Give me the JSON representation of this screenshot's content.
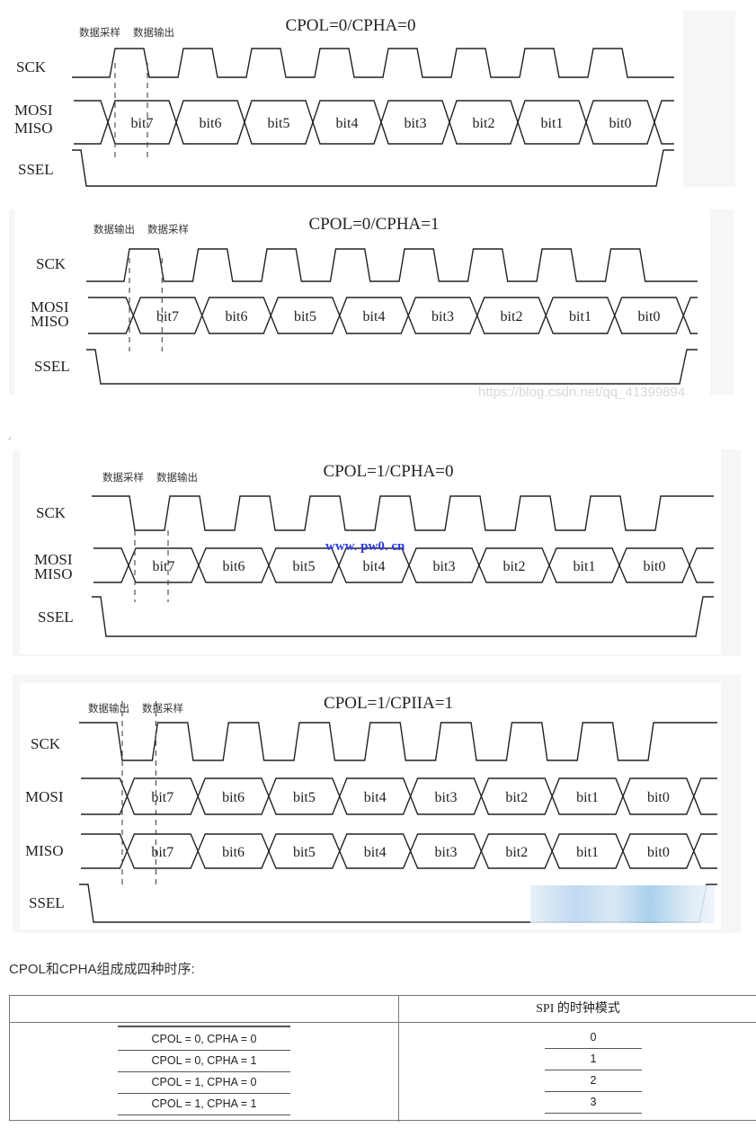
{
  "diagrams": [
    {
      "title": "CPOL=0/CPHA=0",
      "cpol": 0,
      "first_label": "数据采样",
      "second_label": "数据输出",
      "signals": [
        {
          "name": "SCK"
        },
        {
          "name": "MOSI\nMISO",
          "bits": [
            "bit7",
            "bit6",
            "bit5",
            "bit4",
            "bit3",
            "bit2",
            "bit1",
            "bit0"
          ]
        },
        {
          "name": "SSEL"
        }
      ]
    },
    {
      "title": "CPOL=0/CPHA=1",
      "cpol": 0,
      "first_label": "数据输出",
      "second_label": "数据采样",
      "signals": [
        {
          "name": "SCK"
        },
        {
          "name": "MOSI\nMISO",
          "bits": [
            "bit7",
            "bit6",
            "bit5",
            "bit4",
            "bit3",
            "bit2",
            "bit1",
            "bit0"
          ]
        },
        {
          "name": "SSEL"
        }
      ]
    },
    {
      "title": "CPOL=1/CPHA=0",
      "cpol": 1,
      "first_label": "数据采样",
      "second_label": "数据输出",
      "signals": [
        {
          "name": "SCK"
        },
        {
          "name": "MOSI\nMISO",
          "bits": [
            "bit7",
            "bit6",
            "bit5",
            "bit4",
            "bit3",
            "bit2",
            "bit1",
            "bit0"
          ]
        },
        {
          "name": "SSEL"
        }
      ]
    },
    {
      "title": "CPOL=1/CPIIA=1",
      "cpol": 1,
      "first_label": "数据输出",
      "second_label": "数据采样",
      "signals": [
        {
          "name": "SCK"
        },
        {
          "name": "MOSI",
          "bits": [
            "bit7",
            "bit6",
            "bit5",
            "bit4",
            "bit3",
            "bit2",
            "bit1",
            "bit0"
          ]
        },
        {
          "name": "MISO",
          "bits": [
            "bit7",
            "bit6",
            "bit5",
            "bit4",
            "bit3",
            "bit2",
            "bit1",
            "bit0"
          ]
        },
        {
          "name": "SSEL"
        }
      ]
    }
  ],
  "watermarks": {
    "csdn": "https://blog.csdn.net/qq_41399894",
    "site": "www. pw0. cn",
    "corner": "⌟"
  },
  "caption": "CPOL和CPHA组成成四种时序:",
  "table": {
    "header": "SPI 的时钟模式",
    "rows": [
      {
        "setting": "CPOL = 0, CPHA = 0",
        "mode": "0"
      },
      {
        "setting": "CPOL = 0, CPHA = 1",
        "mode": "1"
      },
      {
        "setting": "CPOL = 1, CPHA = 0",
        "mode": "2"
      },
      {
        "setting": "CPOL = 1, CPHA = 1",
        "mode": "3"
      }
    ]
  }
}
